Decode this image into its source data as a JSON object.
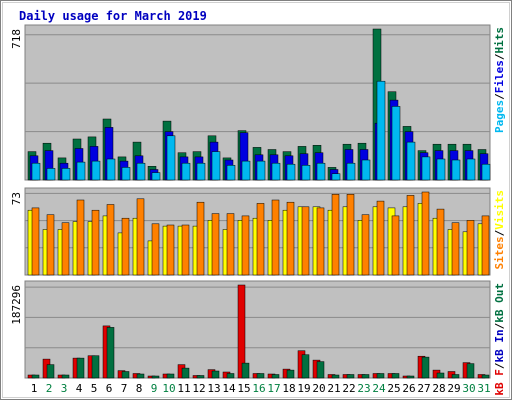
{
  "title": "Daily usage for March 2019",
  "colors": {
    "background": "#ffffff",
    "panel": "#c0c0c0",
    "frame": "#d8d8d8",
    "title": "#0000c0",
    "hits": "#007040",
    "files": "#0000e0",
    "pages": "#00b8f0",
    "visits": "#ffff00",
    "sites": "#ff8000",
    "kb_out": "#007040",
    "kb_in": "#0000c0",
    "kb_f": "#e00000",
    "weekend_label": "#008040",
    "weekday_label": "#000000"
  },
  "chart_data": [
    {
      "type": "bar",
      "name": "hits-files-pages",
      "ymax_label": "718",
      "ylim": [
        0,
        718
      ],
      "legend": [
        {
          "text": "Pages",
          "color": "#00b8f0"
        },
        {
          "text": "Files",
          "color": "#0000e0"
        },
        {
          "text": "Hits",
          "color": "#007040"
        }
      ],
      "categories": [
        "1",
        "2",
        "3",
        "4",
        "5",
        "6",
        "7",
        "8",
        "9",
        "10",
        "11",
        "12",
        "13",
        "14",
        "15",
        "16",
        "17",
        "18",
        "19",
        "20",
        "21",
        "22",
        "23",
        "24",
        "25",
        "26",
        "27",
        "28",
        "29",
        "30",
        "31"
      ],
      "series": [
        {
          "name": "Hits",
          "values": [
            135,
            175,
            105,
            195,
            205,
            290,
            110,
            180,
            65,
            280,
            130,
            135,
            210,
            105,
            235,
            155,
            145,
            135,
            160,
            165,
            60,
            170,
            175,
            718,
            420,
            255,
            140,
            170,
            170,
            170,
            145
          ]
        },
        {
          "name": "Files",
          "values": [
            115,
            140,
            80,
            150,
            160,
            250,
            90,
            115,
            50,
            230,
            110,
            110,
            180,
            95,
            225,
            120,
            120,
            115,
            125,
            130,
            50,
            145,
            145,
            270,
            380,
            230,
            130,
            140,
            140,
            140,
            125
          ]
        },
        {
          "name": "Pages",
          "values": [
            80,
            55,
            55,
            85,
            90,
            100,
            60,
            80,
            35,
            210,
            80,
            80,
            135,
            70,
            90,
            90,
            80,
            75,
            70,
            80,
            30,
            80,
            95,
            470,
            350,
            180,
            110,
            100,
            95,
            100,
            75
          ]
        }
      ]
    },
    {
      "type": "bar",
      "name": "visits-sites",
      "ymax_label": "73",
      "ylim": [
        0,
        73
      ],
      "legend": [
        {
          "text": "Sites",
          "color": "#ff8000"
        },
        {
          "text": "Visits",
          "color": "#ffff00"
        }
      ],
      "categories": [
        "1",
        "2",
        "3",
        "4",
        "5",
        "6",
        "7",
        "8",
        "9",
        "10",
        "11",
        "12",
        "13",
        "14",
        "15",
        "16",
        "17",
        "18",
        "19",
        "20",
        "21",
        "22",
        "23",
        "24",
        "25",
        "26",
        "27",
        "28",
        "29",
        "30",
        "31"
      ],
      "series": [
        {
          "name": "Visits",
          "values": [
            57,
            40,
            40,
            47,
            47,
            52,
            37,
            50,
            30,
            43,
            43,
            43,
            48,
            40,
            48,
            50,
            48,
            57,
            60,
            60,
            57,
            60,
            48,
            60,
            59,
            60,
            63,
            50,
            40,
            38,
            45
          ]
        },
        {
          "name": "Sites",
          "values": [
            59,
            53,
            46,
            66,
            57,
            62,
            50,
            67,
            45,
            44,
            44,
            64,
            54,
            54,
            52,
            63,
            66,
            64,
            60,
            59,
            71,
            71,
            53,
            65,
            52,
            70,
            73,
            58,
            46,
            48,
            52
          ]
        }
      ]
    },
    {
      "type": "bar",
      "name": "kb-traffic",
      "ymax_label": "187296",
      "ylim": [
        0,
        187296
      ],
      "legend": [
        {
          "text": "kB F",
          "color": "#e00000"
        },
        {
          "text": "kB In",
          "color": "#0000c0"
        },
        {
          "text": "kB Out",
          "color": "#007040"
        }
      ],
      "categories": [
        "1",
        "2",
        "3",
        "4",
        "5",
        "6",
        "7",
        "8",
        "9",
        "10",
        "11",
        "12",
        "13",
        "14",
        "15",
        "16",
        "17",
        "18",
        "19",
        "20",
        "21",
        "22",
        "23",
        "24",
        "25",
        "26",
        "27",
        "28",
        "29",
        "30",
        "31"
      ],
      "series": [
        {
          "name": "kB F",
          "values": [
            6000,
            38000,
            6000,
            40000,
            45000,
            105000,
            15000,
            9000,
            4000,
            8000,
            27000,
            5000,
            17000,
            12000,
            187296,
            9000,
            8000,
            18000,
            55000,
            36000,
            7000,
            7000,
            7000,
            9000,
            9000,
            4000,
            44000,
            16000,
            13000,
            31000,
            7000
          ]
        },
        {
          "name": "kB Out",
          "values": [
            6000,
            27000,
            6000,
            40000,
            45000,
            102000,
            13000,
            8000,
            4000,
            8000,
            20000,
            5000,
            14000,
            9000,
            30000,
            9000,
            7000,
            16000,
            47000,
            33000,
            6000,
            7000,
            7000,
            9000,
            9000,
            4000,
            42000,
            10000,
            7000,
            29000,
            6000
          ]
        }
      ]
    }
  ],
  "days": [
    "1",
    "2",
    "3",
    "4",
    "5",
    "6",
    "7",
    "8",
    "9",
    "10",
    "11",
    "12",
    "13",
    "14",
    "15",
    "16",
    "17",
    "18",
    "19",
    "20",
    "21",
    "22",
    "23",
    "24",
    "25",
    "26",
    "27",
    "28",
    "29",
    "30",
    "31"
  ],
  "weekend_days": [
    "2",
    "3",
    "9",
    "10",
    "16",
    "17",
    "23",
    "24",
    "30",
    "31"
  ]
}
